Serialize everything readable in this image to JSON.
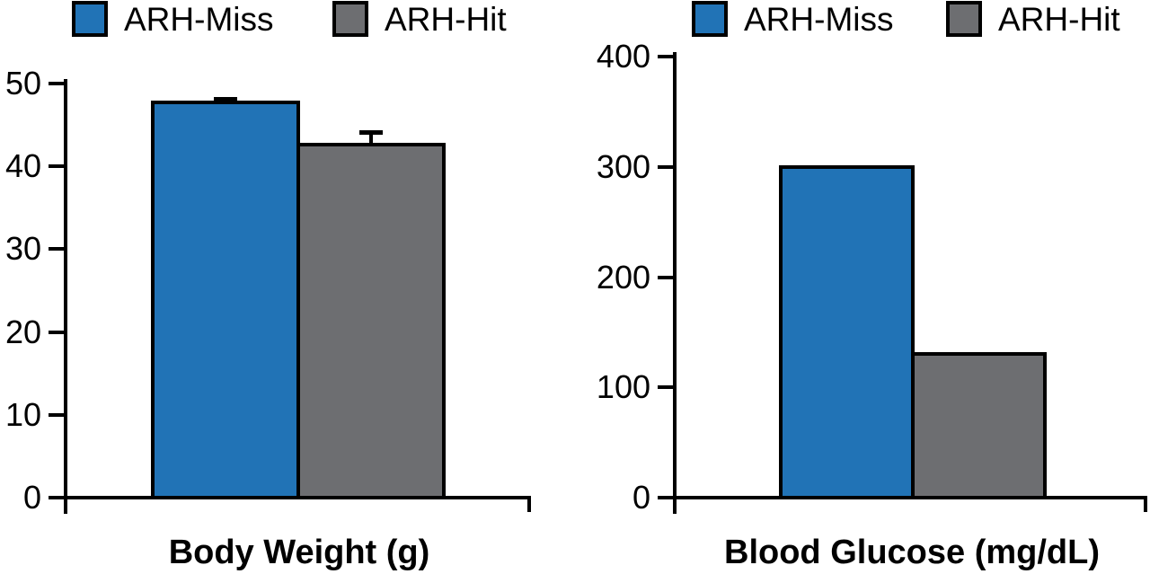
{
  "figure": {
    "background": "#ffffff"
  },
  "colors": {
    "arh_miss": "#2173B6",
    "arh_hit": "#6D6E71",
    "axis": "#000000",
    "text": "#000000"
  },
  "chart_data": [
    {
      "type": "bar",
      "title": "Body Weight (g)",
      "categories": [
        "ARH-Miss",
        "ARH-Hit"
      ],
      "values": [
        47.7,
        42.6
      ],
      "errors": [
        0.5,
        1.5
      ],
      "ylim": [
        0,
        50
      ],
      "yticks": [
        0,
        10,
        20,
        30,
        40,
        50
      ],
      "xlabel": "Body Weight (g)",
      "ylabel": "",
      "grid": false,
      "legend": [
        "ARH-Miss",
        "ARH-Hit"
      ],
      "legend_position": "top"
    },
    {
      "type": "bar",
      "title": "Blood Glucose (mg/dL)",
      "categories": [
        "ARH-Miss",
        "ARH-Hit"
      ],
      "values": [
        300,
        130
      ],
      "errors": [
        0,
        0
      ],
      "ylim": [
        0,
        400
      ],
      "yticks": [
        0,
        100,
        200,
        300,
        400
      ],
      "xlabel": "Blood Glucose (mg/dL)",
      "ylabel": "",
      "grid": false,
      "legend": [
        "ARH-Miss",
        "ARH-Hit"
      ],
      "legend_position": "top"
    }
  ]
}
